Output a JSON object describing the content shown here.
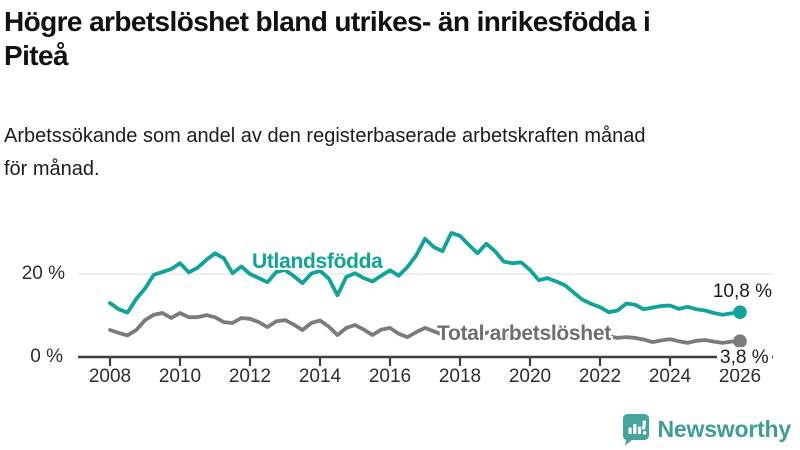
{
  "header": {
    "title_lines": [
      "Högre arbetslöshet bland utrikes- än inrikesfödda i",
      "Piteå"
    ],
    "subtitle_lines": [
      "Arbetssökande som andel av den registerbaserade arbetskraften månad",
      "för månad."
    ]
  },
  "chart_data": {
    "type": "line",
    "title": "Högre arbetslöshet bland utrikes- än inrikesfödda i Piteå",
    "subtitle": "Arbetssökande som andel av den registerbaserade arbetskraften månad för månad.",
    "x_start": 2008,
    "x_step": 0.25,
    "x_ticks": [
      2008,
      2010,
      2012,
      2014,
      2016,
      2018,
      2020,
      2022,
      2024,
      2026
    ],
    "ylim": [
      0,
      32
    ],
    "y_ticks": [
      {
        "value": 20,
        "label": "20 %"
      },
      {
        "value": 0,
        "label": "0 %"
      }
    ],
    "grid": "horizontal-at-20-only",
    "legend_position": "inline-labels-on-lines",
    "series": [
      {
        "name": "Utlandsfödda",
        "color": "#0fa399",
        "end_label": "10,8 %",
        "end_value": 10.8,
        "values": [
          13.0,
          11.5,
          10.7,
          14.0,
          16.5,
          19.8,
          20.5,
          21.2,
          22.6,
          20.4,
          21.5,
          23.4,
          25.0,
          23.8,
          20.2,
          21.8,
          20.0,
          19.0,
          18.0,
          20.5,
          21.0,
          19.5,
          17.8,
          20.1,
          20.8,
          18.9,
          14.9,
          19.3,
          20.2,
          19.0,
          18.2,
          19.6,
          20.9,
          19.6,
          21.7,
          24.5,
          28.5,
          26.5,
          25.5,
          29.9,
          29.2,
          27.0,
          25.0,
          27.3,
          25.5,
          23.0,
          22.6,
          22.8,
          21.0,
          18.5,
          19.0,
          18.2,
          17.3,
          15.5,
          13.8,
          12.8,
          12.0,
          10.8,
          11.2,
          12.9,
          12.6,
          11.5,
          11.9,
          12.3,
          12.4,
          11.6,
          12.1,
          11.5,
          11.2,
          10.6,
          10.2,
          10.5,
          10.8
        ]
      },
      {
        "name": "Total arbetslöshet",
        "color": "#7b7b7b",
        "label_color": "#6f6f6f",
        "end_label": "3,8 %",
        "end_value": 3.8,
        "values": [
          6.5,
          5.8,
          5.2,
          6.5,
          8.9,
          10.2,
          10.6,
          9.4,
          10.6,
          9.6,
          9.6,
          10.1,
          9.6,
          8.4,
          8.2,
          9.4,
          9.2,
          8.4,
          7.2,
          8.6,
          8.9,
          7.8,
          6.5,
          8.2,
          8.8,
          7.3,
          5.3,
          7.0,
          7.7,
          6.6,
          5.3,
          6.6,
          7.0,
          5.6,
          4.8,
          6.0,
          7.0,
          6.2,
          5.4,
          6.2,
          6.5,
          5.8,
          5.0,
          5.8,
          6.2,
          5.6,
          5.0,
          5.8,
          6.4,
          6.8,
          6.5,
          6.6,
          6.8,
          6.2,
          5.6,
          5.4,
          5.4,
          5.0,
          4.6,
          4.8,
          4.6,
          4.2,
          3.6,
          4.0,
          4.3,
          3.8,
          3.4,
          3.9,
          4.1,
          3.7,
          3.4,
          3.7,
          3.8
        ]
      }
    ]
  },
  "style": {
    "grid_color": "#e2e2e2",
    "axis_color": "#3d3d3d",
    "tick_label_color": "#2e2e2e"
  },
  "branding": {
    "name": "Newsworthy",
    "text_color": "#3f9d98",
    "bubble_color": "#46a49f"
  }
}
